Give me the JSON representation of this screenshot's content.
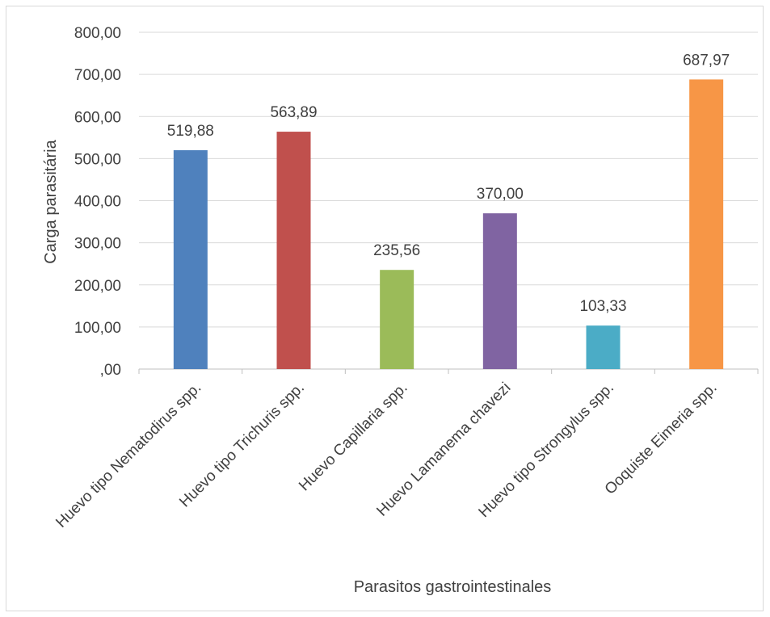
{
  "chart_data": {
    "type": "bar",
    "title": "",
    "xlabel": "Parasitos gastrointestinales",
    "ylabel": "Carga parasitária",
    "ylim": [
      0,
      800
    ],
    "yticks": [
      0,
      100,
      200,
      300,
      400,
      500,
      600,
      700,
      800
    ],
    "ytick_labels": [
      ",00",
      "100,00",
      "200,00",
      "300,00",
      "400,00",
      "500,00",
      "600,00",
      "700,00",
      "800,00"
    ],
    "grid": true,
    "categories": [
      "Huevo tipo Nematodirus spp.",
      "Huevo tipo Trichuris spp.",
      "Huevo Capillaria spp.",
      "Huevo Lamanema chavezi",
      "Huevo tipo Strongylus spp.",
      "Ooquiste Eimeria spp."
    ],
    "values": [
      519.88,
      563.89,
      235.56,
      370.0,
      103.33,
      687.97
    ],
    "value_labels": [
      "519,88",
      "563,89",
      "235,56",
      "370,00",
      "103,33",
      "687,97"
    ],
    "colors": [
      "#4f81bd",
      "#c0504d",
      "#9bbb59",
      "#8064a2",
      "#4bacc6",
      "#f79646"
    ]
  }
}
